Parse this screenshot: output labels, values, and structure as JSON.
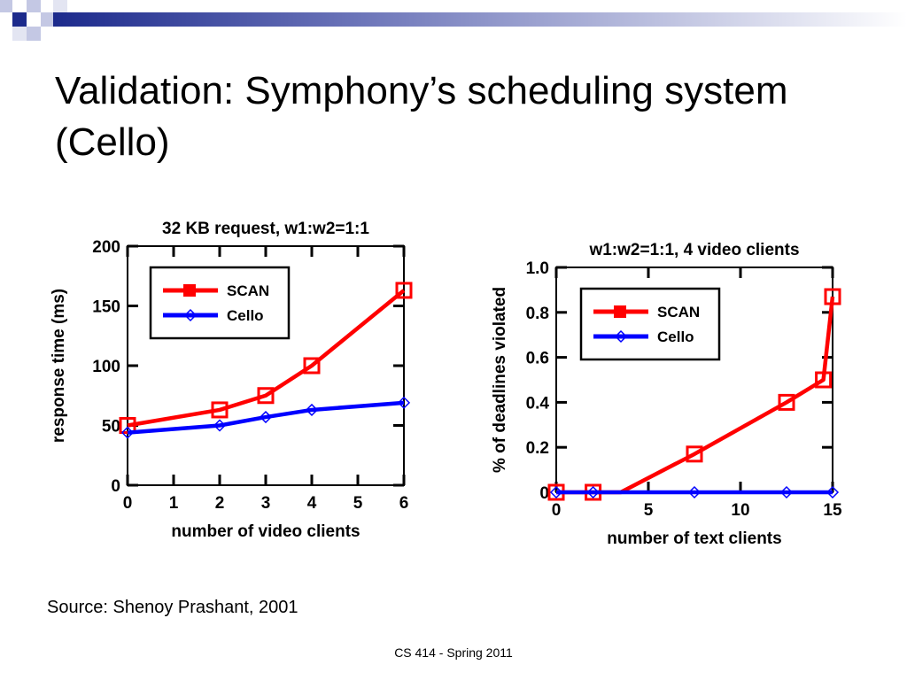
{
  "slide": {
    "title": "Validation: Symphony’s scheduling system (Cello)",
    "source": "Source: Shenoy Prashant, 2001",
    "footer": "CS 414 - Spring 2011"
  },
  "colors": {
    "scan": "#ff0000",
    "cello": "#0000ff",
    "band": "#1c2a8c"
  },
  "chart_data": [
    {
      "type": "line",
      "title": "32 KB request, w1:w2=1:1",
      "xlabel": "number of video clients",
      "ylabel": "response time (ms)",
      "xlim": [
        0,
        6
      ],
      "ylim": [
        0,
        200
      ],
      "xticks": [
        0,
        1,
        2,
        3,
        4,
        5,
        6
      ],
      "yticks": [
        0,
        50,
        100,
        150,
        200
      ],
      "grid": false,
      "legend": "top-left",
      "series": [
        {
          "name": "SCAN",
          "color": "#ff0000",
          "marker": "square",
          "x": [
            0,
            2,
            3,
            4,
            6
          ],
          "y": [
            50,
            63,
            75,
            100,
            163
          ]
        },
        {
          "name": "Cello",
          "color": "#0000ff",
          "marker": "diamond",
          "x": [
            0,
            2,
            3,
            4,
            6
          ],
          "y": [
            44,
            50,
            57,
            63,
            69
          ]
        }
      ]
    },
    {
      "type": "line",
      "title": "w1:w2=1:1, 4 video clients",
      "xlabel": "number of text clients",
      "ylabel": "% of deadlines violated",
      "xlim": [
        0,
        15
      ],
      "ylim": [
        0,
        1.0
      ],
      "xticks": [
        0,
        5,
        10,
        15
      ],
      "yticks": [
        0,
        0.2,
        0.4,
        0.6,
        0.8,
        1.0
      ],
      "ytick_labels": [
        "0",
        "0.2",
        "0.4",
        "0.6",
        "0.8",
        "1.0"
      ],
      "grid": false,
      "legend": "top-left",
      "series": [
        {
          "name": "SCAN",
          "color": "#ff0000",
          "marker": "square",
          "x": [
            0,
            2,
            3.5,
            7.5,
            12.5,
            14.5,
            15
          ],
          "y": [
            0,
            0,
            0,
            0.17,
            0.4,
            0.5,
            0.87
          ],
          "marker_idx": [
            0,
            1,
            3,
            4,
            5,
            6
          ]
        },
        {
          "name": "Cello",
          "color": "#0000ff",
          "marker": "diamond",
          "x": [
            0,
            2,
            7.5,
            12.5,
            15
          ],
          "y": [
            0,
            0,
            0,
            0,
            0
          ]
        }
      ]
    }
  ]
}
